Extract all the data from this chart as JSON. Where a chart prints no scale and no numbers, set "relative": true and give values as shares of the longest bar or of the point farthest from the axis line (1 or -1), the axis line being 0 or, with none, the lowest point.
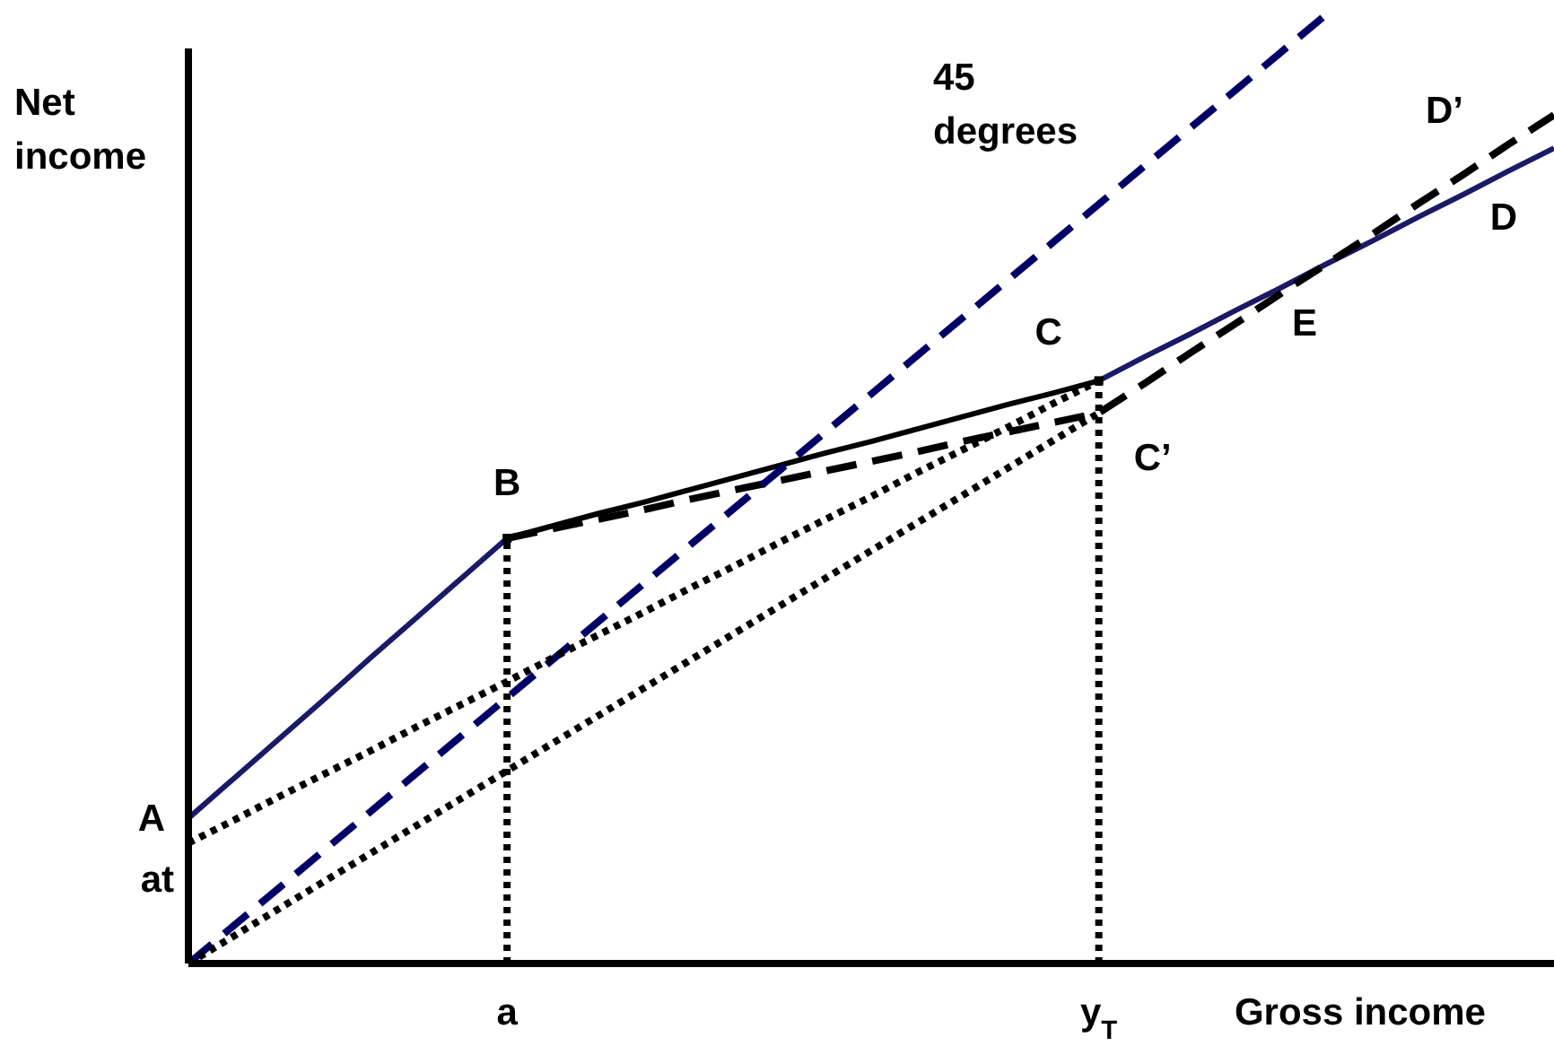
{
  "chart_data": {
    "type": "line",
    "relative": true,
    "xlabel": "Gross income",
    "ylabel": "Net income",
    "categories": [
      null,
      null,
      null,
      null,
      null,
      null,
      null,
      "a",
      null,
      null,
      null,
      null,
      null,
      null,
      null,
      null,
      null,
      null,
      null,
      null,
      "y$_{T}$",
      null,
      null,
      null,
      null,
      null,
      null,
      null,
      null,
      null,
      null
    ],
    "series": [
      {
        "color": "#1a1a66",
        "line_style": "solid",
        "values": [
          0.153,
          0.195,
          0.237,
          0.279,
          0.322,
          0.364,
          0.406,
          0.448,
          null,
          null,
          null,
          null,
          null,
          null,
          null,
          null,
          null,
          null,
          null,
          null,
          null,
          null,
          null,
          null,
          null,
          null,
          null,
          null,
          null,
          null,
          null
        ]
      },
      {
        "color": "#000000",
        "line_style": "solid",
        "values": [
          null,
          null,
          null,
          null,
          null,
          null,
          null,
          0.448,
          0.461,
          0.474,
          0.486,
          0.499,
          0.512,
          0.525,
          0.538,
          0.55,
          0.563,
          0.576,
          0.589,
          0.601,
          0.614,
          null,
          null,
          null,
          null,
          null,
          null,
          null,
          null,
          null,
          null
        ]
      },
      {
        "color": "#1a1a66",
        "line_style": "solid",
        "values": [
          null,
          null,
          null,
          null,
          null,
          null,
          null,
          null,
          null,
          null,
          null,
          null,
          null,
          null,
          null,
          null,
          null,
          null,
          null,
          null,
          0.614,
          0.639,
          0.663,
          0.688,
          0.712,
          0.737,
          0.761,
          0.786,
          0.81,
          0.835,
          0.859
        ]
      },
      {
        "color": "#000000",
        "line_style": "dashed",
        "values": [
          null,
          null,
          null,
          null,
          null,
          null,
          null,
          0.448,
          0.458,
          0.468,
          0.478,
          0.489,
          0.499,
          0.509,
          0.519,
          0.529,
          0.539,
          0.55,
          0.56,
          0.57,
          0.58,
          0.611,
          0.643,
          0.674,
          0.706,
          0.737,
          0.768,
          0.8,
          0.831,
          0.863,
          0.894
        ]
      },
      {
        "color": "#000066",
        "line_style": "dashed",
        "values": [
          0,
          0.04,
          0.08,
          0.12,
          0.16,
          0.2,
          0.24,
          0.28,
          0.32,
          0.36,
          0.4,
          0.44,
          0.48,
          0.52,
          0.56,
          0.6,
          0.64,
          0.68,
          0.72,
          0.76,
          0.8,
          0.84,
          0.88,
          0.92,
          0.96,
          1,
          null,
          null,
          null,
          null,
          null
        ]
      },
      {
        "color": "#000000",
        "line_style": "dotted",
        "values": [
          0.127,
          0.151,
          0.176,
          0.2,
          0.224,
          0.249,
          0.273,
          0.297,
          0.322,
          0.346,
          0.37,
          0.395,
          0.419,
          0.444,
          0.468,
          0.492,
          0.517,
          0.541,
          0.565,
          0.59,
          0.614,
          null,
          null,
          null,
          null,
          null,
          null,
          null,
          null,
          null,
          null
        ]
      },
      {
        "color": "#000000",
        "line_style": "dotted",
        "values": [
          0,
          0.029,
          0.058,
          0.087,
          0.116,
          0.145,
          0.174,
          0.203,
          0.232,
          0.261,
          0.29,
          0.319,
          0.348,
          0.377,
          0.406,
          0.435,
          0.464,
          0.493,
          0.522,
          0.551,
          0.58,
          null,
          null,
          null,
          null,
          null,
          null,
          null,
          null,
          null,
          null
        ]
      },
      {
        "type": "lollipop",
        "marker": "square",
        "color": "#000000",
        "line_style": "dotted",
        "values": [
          null,
          null,
          null,
          null,
          null,
          null,
          null,
          0.448,
          null,
          null,
          null,
          null,
          null,
          null,
          null,
          null,
          null,
          null,
          null,
          null,
          0.614,
          null,
          null,
          null,
          null,
          null,
          null,
          null,
          null,
          null,
          null
        ]
      }
    ],
    "annotations": [
      "A",
      "at",
      {
        "text": "B",
        "x": "a",
        "y": 0.448
      },
      {
        "text": "C",
        "x": "y$_{T}$",
        "y": 0.614
      },
      {
        "text": "C’",
        "x": "y$_{T}$",
        "y": 0.58
      },
      {
        "text": "E",
        "y": 0.737
      },
      {
        "text": "D",
        "y": 0.853
      },
      {
        "text": "D’",
        "y": 0.818
      },
      "45 degrees"
    ]
  }
}
